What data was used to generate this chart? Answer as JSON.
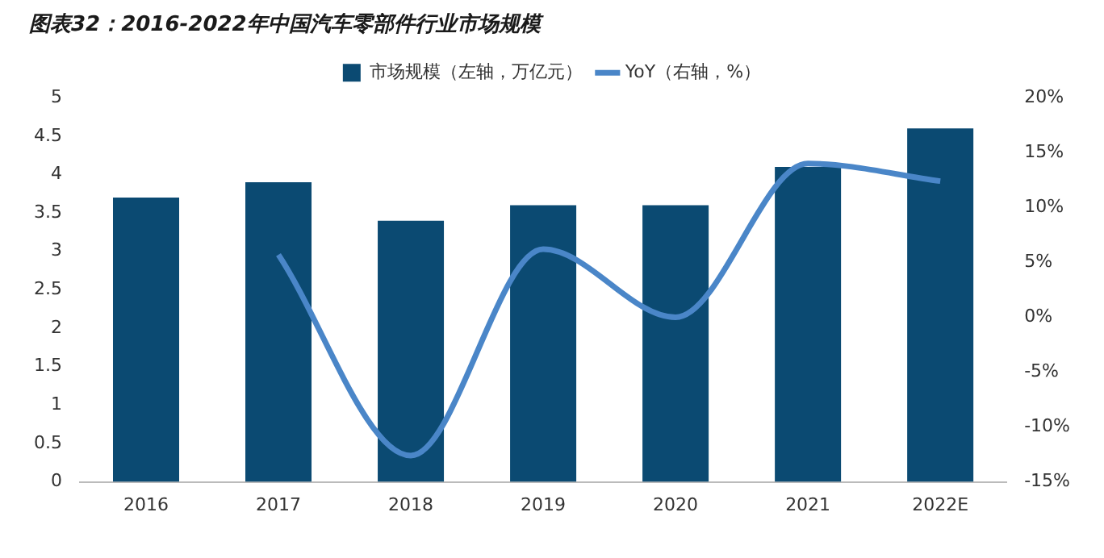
{
  "chart_data": {
    "type": "bar",
    "title": "图表32：2016-2022年中国汽车零部件行业市场规模",
    "categories": [
      "2016",
      "2017",
      "2018",
      "2019",
      "2020",
      "2021",
      "2022E"
    ],
    "series": [
      {
        "name": "市场规模（左轴，万亿元）",
        "color": "#0b4a72",
        "values": [
          3.7,
          3.9,
          3.4,
          3.6,
          3.6,
          4.1,
          4.6
        ]
      },
      {
        "name": "YoY（右轴，%）",
        "type": "line",
        "axis": "y2",
        "color": "#4a86c8",
        "values": [
          null,
          5.7,
          -12.6,
          6.2,
          0,
          14,
          12.4
        ]
      }
    ],
    "ylim": [
      0,
      5
    ],
    "yticks": [
      0,
      0.5,
      1,
      1.5,
      2,
      2.5,
      3,
      3.5,
      4,
      4.5,
      5
    ],
    "y2lim": [
      -15,
      20
    ],
    "y2ticks": [
      {
        "value": -15,
        "label": "-15%"
      },
      {
        "value": -10,
        "label": "-10%"
      },
      {
        "value": -5,
        "label": "-5%"
      },
      {
        "value": 0,
        "label": "0%"
      },
      {
        "value": 5,
        "label": "5%"
      },
      {
        "value": 10,
        "label": "10%"
      },
      {
        "value": 15,
        "label": "15%"
      },
      {
        "value": 20,
        "label": "20%"
      }
    ],
    "grid": false,
    "legend": "top",
    "marker": "none",
    "line_style": "solid"
  }
}
